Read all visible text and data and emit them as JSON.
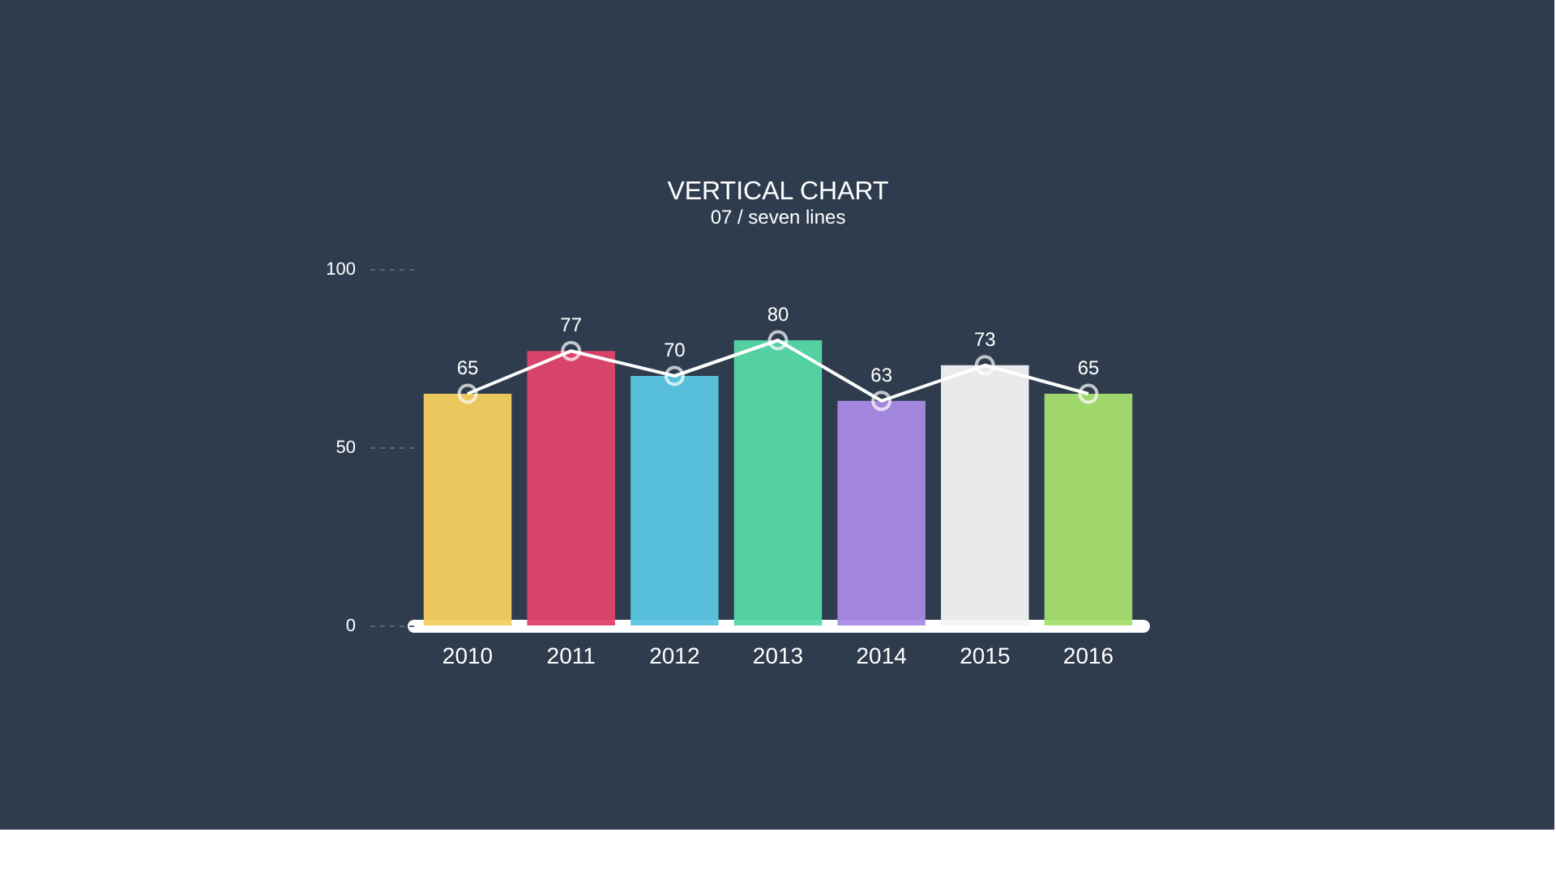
{
  "chart_data": {
    "type": "bar",
    "title": "VERTICAL CHART",
    "subtitle": "07 / seven lines",
    "categories": [
      "2010",
      "2011",
      "2012",
      "2013",
      "2014",
      "2015",
      "2016"
    ],
    "series": [
      {
        "colors": [
          "#f4cd5e",
          "#e0456a",
          "#5bc6e2",
          "#56d8a8",
          "#a98ae6",
          "#f2f3f4",
          "#a5df6f"
        ],
        "values": [
          65,
          77,
          70,
          80,
          63,
          73,
          65
        ]
      },
      {
        "type": "line",
        "color": "#ffffff",
        "marker": "circle",
        "values": [
          65,
          77,
          70,
          80,
          63,
          73,
          65
        ],
        "value_labels": [
          "65",
          "77",
          "70",
          "80",
          "63",
          "73",
          "65"
        ]
      }
    ],
    "ylim": [
      0,
      100
    ],
    "yticks": [
      0,
      50,
      100
    ],
    "grid": false
  }
}
